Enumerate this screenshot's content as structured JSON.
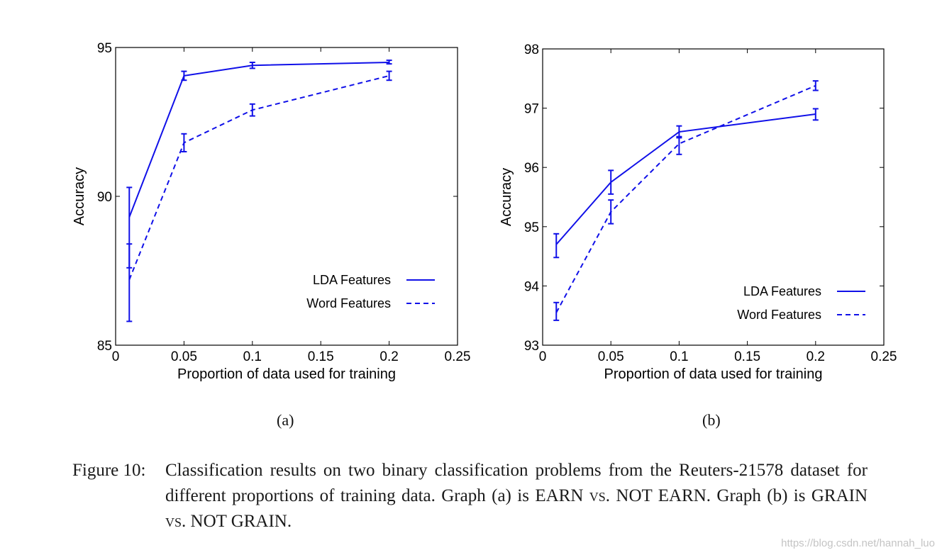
{
  "chart_data": [
    {
      "id": "a",
      "type": "line",
      "panel_label": "(a)",
      "title": "",
      "xlabel": "Proportion of data used for training",
      "ylabel": "Accuracy",
      "xlim": [
        0,
        0.25
      ],
      "ylim": [
        85,
        95
      ],
      "xticks": [
        0,
        0.05,
        0.1,
        0.15,
        0.2,
        0.25
      ],
      "xtick_labels": [
        "0",
        "0.05",
        "0.1",
        "0.15",
        "0.2",
        "0.25"
      ],
      "yticks": [
        85,
        90,
        95
      ],
      "ytick_labels": [
        "85",
        "90",
        "95"
      ],
      "grid": false,
      "legend_position": "bottom-right",
      "x": [
        0.01,
        0.05,
        0.1,
        0.2
      ],
      "series": [
        {
          "name": "LDA Features",
          "style": "solid",
          "color": "#1010e8",
          "values": [
            89.3,
            94.05,
            94.4,
            94.5
          ],
          "err_low": [
            85.8,
            93.9,
            94.3,
            94.45
          ],
          "err_high": [
            90.3,
            94.2,
            94.5,
            94.57
          ]
        },
        {
          "name": "Word Features",
          "style": "dashed",
          "color": "#1010e8",
          "values": [
            87.2,
            91.8,
            92.9,
            94.05
          ],
          "err_low": [
            87.6,
            91.5,
            92.7,
            93.9
          ],
          "err_high": [
            88.4,
            92.1,
            93.1,
            94.2
          ]
        }
      ]
    },
    {
      "id": "b",
      "type": "line",
      "panel_label": "(b)",
      "title": "",
      "xlabel": "Proportion of data used for training",
      "ylabel": "Accuracy",
      "xlim": [
        0,
        0.25
      ],
      "ylim": [
        93,
        98
      ],
      "xticks": [
        0,
        0.05,
        0.1,
        0.15,
        0.2,
        0.25
      ],
      "xtick_labels": [
        "0",
        "0.05",
        "0.1",
        "0.15",
        "0.2",
        "0.25"
      ],
      "yticks": [
        93,
        94,
        95,
        96,
        97,
        98
      ],
      "ytick_labels": [
        "93",
        "94",
        "95",
        "96",
        "97",
        "98"
      ],
      "grid": false,
      "legend_position": "bottom-right",
      "x": [
        0.01,
        0.05,
        0.1,
        0.2
      ],
      "series": [
        {
          "name": "LDA Features",
          "style": "solid",
          "color": "#1010e8",
          "values": [
            94.7,
            95.75,
            96.6,
            96.9
          ],
          "err_low": [
            94.48,
            95.55,
            96.5,
            96.8
          ],
          "err_high": [
            94.88,
            95.95,
            96.7,
            96.99
          ]
        },
        {
          "name": "Word Features",
          "style": "dashed",
          "color": "#1010e8",
          "values": [
            93.55,
            95.25,
            96.4,
            97.38
          ],
          "err_low": [
            93.42,
            95.05,
            96.22,
            97.3
          ],
          "err_high": [
            93.72,
            95.45,
            96.52,
            97.46
          ]
        }
      ]
    }
  ],
  "caption": {
    "label": "Figure 10:",
    "text_1": "Classification results on two binary classification problems from the Reuters-21578 dataset for different proportions of training data. Graph (a) is ",
    "sc_1": "EARN vs. NOT EARN",
    "text_2": ". Graph (b) is ",
    "sc_2": "GRAIN vs. NOT GRAIN",
    "text_3": "."
  },
  "watermark": "https://blog.csdn.net/hannah_luo"
}
